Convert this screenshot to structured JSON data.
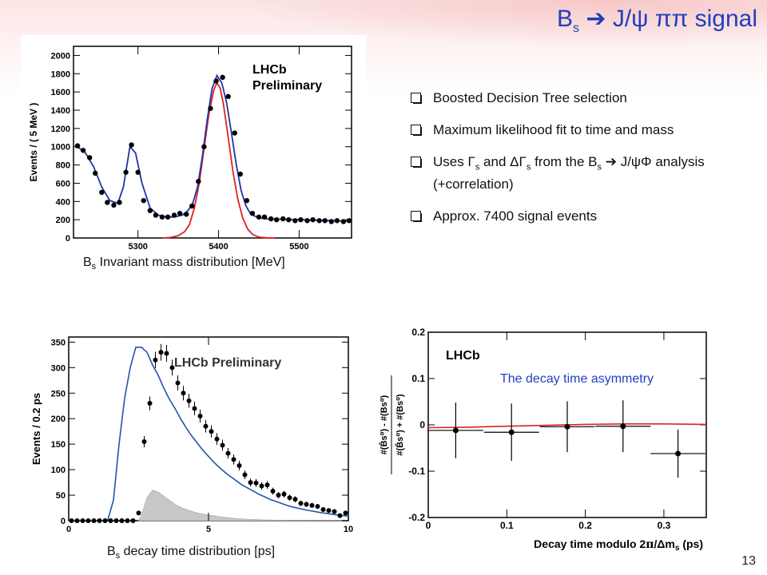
{
  "slide": {
    "title_main": "B",
    "title_sub": "s",
    "title_rest": "  J/ψ ππ  signal",
    "page_number": "13"
  },
  "bullets": [
    {
      "text": "Boosted Decision Tree selection"
    },
    {
      "text": "Maximum likelihood fit to time and mass"
    },
    {
      "text_a": "Uses Γ",
      "sub_a": "s",
      "text_b": " and ΔΓ",
      "sub_b": "s",
      "text_c": " from the B",
      "sub_c": "s",
      "text_d": "  J/ψΦ analysis (+correlation)"
    },
    {
      "text": "Approx. 7400 signal events"
    }
  ],
  "captions": {
    "mass": {
      "pre": "B",
      "sub": "s",
      "post": " Invariant mass distribution [MeV]"
    },
    "time": {
      "pre": "B",
      "sub": "s",
      "post": " decay time distribution [ps]"
    }
  },
  "chart_data": [
    {
      "id": "mass",
      "type": "scatter",
      "title": "",
      "annotation_lines": [
        "LHCb",
        "Preliminary"
      ],
      "xlabel": "",
      "ylabel": "Events / ( 5 MeV )",
      "xlim": [
        5220,
        5565
      ],
      "ylim": [
        0,
        2100
      ],
      "xticks": [
        5300,
        5400,
        5500
      ],
      "yticks": [
        0,
        200,
        400,
        600,
        800,
        1000,
        1200,
        1400,
        1600,
        1800,
        2000
      ],
      "series": [
        {
          "role": "data",
          "color": "#000000",
          "x": [
            5225,
            5232,
            5240,
            5247,
            5255,
            5262,
            5270,
            5277,
            5285,
            5292,
            5300,
            5307,
            5315,
            5322,
            5330,
            5337,
            5345,
            5352,
            5360,
            5367,
            5375,
            5382,
            5390,
            5397,
            5405,
            5412,
            5420,
            5427,
            5435,
            5442,
            5450,
            5457,
            5465,
            5472,
            5480,
            5487,
            5495,
            5502,
            5510,
            5517,
            5525,
            5532,
            5540,
            5547,
            5555,
            5562
          ],
          "y": [
            1010,
            960,
            880,
            710,
            500,
            390,
            360,
            390,
            720,
            1020,
            720,
            410,
            300,
            250,
            230,
            230,
            250,
            270,
            260,
            350,
            620,
            1000,
            1420,
            1720,
            1760,
            1550,
            1150,
            700,
            410,
            270,
            230,
            230,
            210,
            200,
            210,
            200,
            190,
            200,
            190,
            200,
            190,
            190,
            180,
            190,
            180,
            190
          ]
        },
        {
          "role": "total-fit",
          "color": "#2233aa",
          "x": [
            5225,
            5235,
            5245,
            5255,
            5265,
            5275,
            5282,
            5290,
            5297,
            5305,
            5315,
            5325,
            5335,
            5345,
            5355,
            5362,
            5368,
            5374,
            5380,
            5386,
            5392,
            5398,
            5404,
            5410,
            5416,
            5422,
            5428,
            5434,
            5440,
            5450,
            5460,
            5480,
            5500,
            5520,
            5540,
            5565
          ],
          "y": [
            1000,
            930,
            780,
            560,
            410,
            380,
            560,
            1000,
            930,
            600,
            330,
            250,
            230,
            230,
            250,
            300,
            380,
            560,
            900,
            1300,
            1640,
            1780,
            1700,
            1480,
            1150,
            800,
            520,
            350,
            260,
            220,
            210,
            205,
            200,
            195,
            190,
            185
          ]
        },
        {
          "role": "signal-fit",
          "color": "#dd2222",
          "x": [
            5330,
            5340,
            5350,
            5358,
            5364,
            5370,
            5376,
            5382,
            5388,
            5394,
            5398,
            5402,
            5406,
            5412,
            5418,
            5424,
            5430,
            5436,
            5442,
            5450,
            5460,
            5470
          ],
          "y": [
            0,
            5,
            25,
            70,
            150,
            330,
            600,
            980,
            1360,
            1620,
            1700,
            1640,
            1470,
            1100,
            720,
            420,
            220,
            100,
            40,
            10,
            2,
            0
          ]
        }
      ]
    },
    {
      "id": "time",
      "type": "scatter",
      "title": "",
      "annotation": "LHCb Preliminary",
      "xlabel": "",
      "ylabel": "Events / 0.2 ps",
      "xlim": [
        0,
        10
      ],
      "ylim": [
        0,
        360
      ],
      "xticks": [
        0,
        5,
        10
      ],
      "yticks": [
        0,
        50,
        100,
        150,
        200,
        250,
        300,
        350
      ],
      "series": [
        {
          "role": "data",
          "color": "#000000",
          "x": [
            0.1,
            0.3,
            0.5,
            0.7,
            0.9,
            1.1,
            1.3,
            1.5,
            1.7,
            1.9,
            2.1,
            2.3,
            2.5,
            2.7,
            2.9,
            3.1,
            3.3,
            3.5,
            3.7,
            3.9,
            4.1,
            4.3,
            4.5,
            4.7,
            4.9,
            5.1,
            5.3,
            5.5,
            5.7,
            5.9,
            6.1,
            6.3,
            6.5,
            6.7,
            6.9,
            7.1,
            7.3,
            7.5,
            7.7,
            7.9,
            8.1,
            8.3,
            8.5,
            8.7,
            8.9,
            9.1,
            9.3,
            9.5,
            9.7,
            9.9
          ],
          "y": [
            0,
            0,
            0,
            0,
            0,
            0,
            0,
            0,
            0,
            0,
            0,
            0,
            15,
            155,
            230,
            315,
            330,
            328,
            300,
            270,
            250,
            235,
            220,
            205,
            185,
            175,
            160,
            148,
            132,
            120,
            108,
            90,
            75,
            74,
            68,
            70,
            58,
            50,
            52,
            45,
            42,
            34,
            32,
            30,
            28,
            22,
            20,
            18,
            10,
            15
          ]
        },
        {
          "role": "total-fit",
          "color": "#2255aa",
          "x": [
            0,
            0.5,
            0.7,
            1.0,
            1.2,
            1.4,
            1.6,
            1.8,
            2.0,
            2.2,
            2.4,
            2.6,
            2.8,
            3.0,
            3.2,
            3.4,
            3.6,
            3.8,
            4.0,
            4.2,
            4.4,
            4.6,
            4.8,
            5.0,
            5.2,
            5.4,
            5.6,
            5.8,
            6.0,
            6.2,
            6.4,
            6.6,
            6.8,
            7.0,
            7.2,
            7.4,
            7.6,
            7.8,
            8.0,
            8.5,
            9.0,
            9.5,
            10.0
          ],
          "y": [
            0,
            0,
            0,
            0,
            0,
            2,
            40,
            150,
            240,
            300,
            340,
            340,
            330,
            305,
            285,
            260,
            238,
            220,
            200,
            182,
            166,
            152,
            138,
            126,
            114,
            104,
            94,
            86,
            78,
            70,
            64,
            58,
            52,
            47,
            42,
            38,
            34,
            30,
            27,
            21,
            16,
            12,
            9
          ]
        },
        {
          "role": "background",
          "color": "#c8c8c8",
          "x": [
            2.5,
            2.6,
            2.8,
            3.0,
            3.2,
            3.4,
            3.6,
            3.8,
            4.0,
            4.3,
            4.6,
            5.0,
            5.5,
            6.0,
            6.5,
            7.0,
            7.5,
            8.0,
            8.5,
            9.0,
            9.5,
            10.0
          ],
          "y": [
            0,
            10,
            45,
            60,
            56,
            48,
            40,
            32,
            26,
            20,
            15,
            11,
            7,
            4,
            2.5,
            1.5,
            1,
            0.5,
            0.3,
            0.2,
            0.1,
            0
          ]
        }
      ]
    },
    {
      "id": "asym",
      "type": "scatter",
      "title": "",
      "annotation": "LHCb",
      "overlay_label": "The decay time asymmetry",
      "xlabel_parts": [
        "Decay time modulo 2",
        "π",
        "/Δm",
        "s",
        " (ps)"
      ],
      "ylabel": "#(B̄s⁰) - #(Bs⁰) / #(B̄s⁰) + #(Bs⁰)",
      "xlim": [
        0,
        0.354
      ],
      "ylim": [
        -0.2,
        0.2
      ],
      "xticks": [
        0,
        0.1,
        0.2,
        0.3
      ],
      "yticks": [
        -0.2,
        -0.1,
        0,
        0.1,
        0.2
      ],
      "series": [
        {
          "role": "data",
          "color": "#000000",
          "x": [
            0.035,
            0.106,
            0.177,
            0.248,
            0.318
          ],
          "y": [
            -0.012,
            -0.016,
            -0.004,
            -0.003,
            -0.062
          ],
          "xerr": [
            0.035,
            0.035,
            0.035,
            0.035,
            0.035
          ],
          "yerr": [
            0.06,
            0.062,
            0.055,
            0.056,
            0.052
          ]
        },
        {
          "role": "fit",
          "color": "#dd2222",
          "x": [
            0,
            0.05,
            0.1,
            0.15,
            0.2,
            0.25,
            0.3,
            0.354
          ],
          "y": [
            -0.006,
            -0.005,
            -0.003,
            -0.001,
            0.001,
            0.002,
            0.002,
            0.001
          ]
        }
      ]
    }
  ]
}
